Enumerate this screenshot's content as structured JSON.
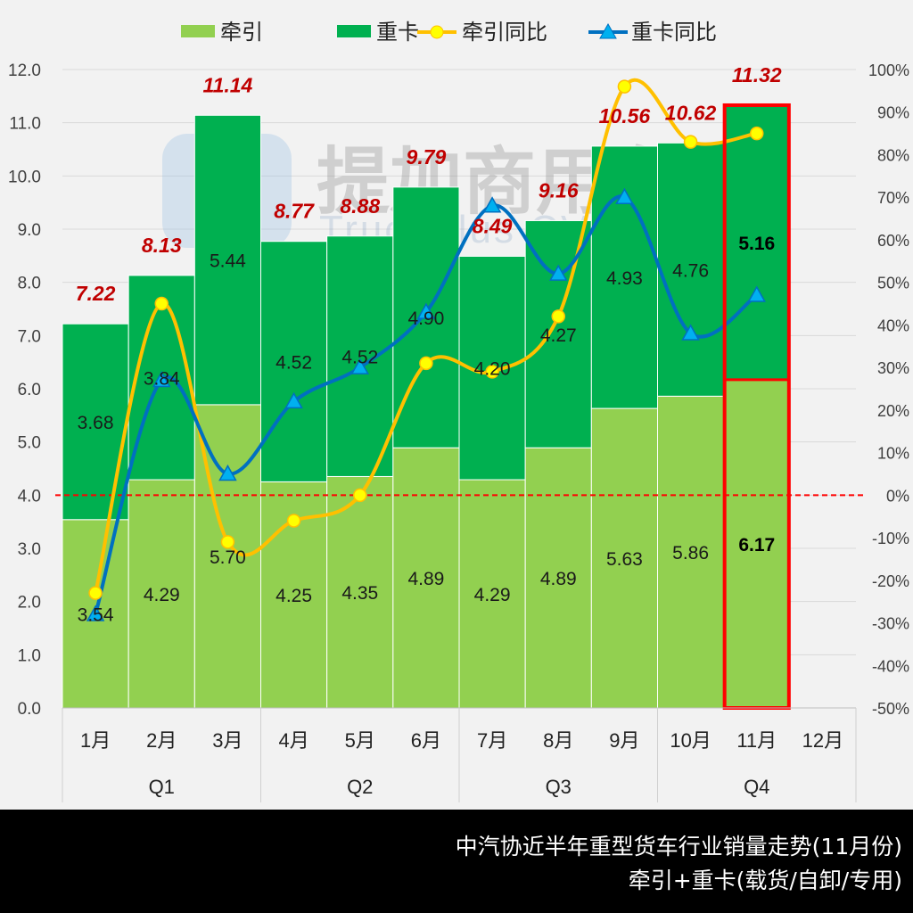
{
  "caption": {
    "line1": "中汽协近半年重型货车行业销量走势(11月份)",
    "line2": "牵引+重卡(载货/自卸/专用)"
  },
  "watermark": {
    "cn": "提加商用车",
    "en": "TruckPlus CV studio"
  },
  "colors": {
    "traction_bar": "#92d050",
    "heavy_bar": "#00b050",
    "traction_line": "#ffc000",
    "traction_marker": "#ffff00",
    "heavy_line": "#0070c0",
    "heavy_marker": "#00b0f0",
    "total_label": "#c00000",
    "highlight_box": "#ff0000",
    "zero_line": "#ff0000",
    "background": "#f2f2f2"
  },
  "chart_data": {
    "type": "bar",
    "stacked": true,
    "title": "中汽协近半年重型货车行业销量走势(11月份)",
    "subtitle": "牵引+重卡(载货/自卸/专用)",
    "categories": [
      "1月",
      "2月",
      "3月",
      "4月",
      "5月",
      "6月",
      "7月",
      "8月",
      "9月",
      "10月",
      "11月",
      "12月"
    ],
    "groups": [
      {
        "label": "Q1",
        "span": 3
      },
      {
        "label": "Q2",
        "span": 3
      },
      {
        "label": "Q3",
        "span": 3
      },
      {
        "label": "Q4",
        "span": 3
      }
    ],
    "series": [
      {
        "name": "牵引",
        "type": "bar",
        "axis": "left",
        "values": [
          3.54,
          4.29,
          5.7,
          4.25,
          4.35,
          4.89,
          4.29,
          4.89,
          5.63,
          5.86,
          6.17,
          null
        ]
      },
      {
        "name": "重卡",
        "type": "bar",
        "axis": "left",
        "values": [
          3.68,
          3.84,
          5.44,
          4.52,
          4.52,
          4.9,
          4.2,
          4.27,
          4.93,
          4.76,
          5.16,
          null
        ]
      },
      {
        "name": "牵引同比",
        "type": "line",
        "axis": "right",
        "marker": "circle",
        "values": [
          -23,
          45,
          -11,
          -6,
          0,
          31,
          29,
          42,
          96,
          83,
          85,
          null
        ]
      },
      {
        "name": "重卡同比",
        "type": "line",
        "axis": "right",
        "marker": "triangle",
        "values": [
          -28,
          27,
          5,
          22,
          30,
          43,
          68,
          52,
          70,
          38,
          47,
          null
        ]
      }
    ],
    "totals": [
      7.22,
      8.13,
      11.14,
      8.77,
      8.88,
      9.79,
      8.49,
      9.16,
      10.56,
      10.62,
      11.32,
      null
    ],
    "total_labels": [
      "7.22",
      "8.13",
      "11.14",
      "8.77",
      "8.88",
      "9.79",
      "8.49",
      "9.16",
      "10.56",
      "10.62",
      "11.32",
      ""
    ],
    "bottom_labels": [
      "3.54",
      "4.29",
      "5.70",
      "4.25",
      "4.35",
      "4.89",
      "4.29",
      "4.89",
      "5.63",
      "5.86",
      "6.17",
      ""
    ],
    "top_labels": [
      "3.68",
      "3.84",
      "5.44",
      "4.52",
      "4.52",
      "4.90",
      "4.20",
      "4.27",
      "4.93",
      "4.76",
      "5.16",
      ""
    ],
    "highlight_index": 10,
    "ylim": [
      0,
      12
    ],
    "y2lim": [
      -50,
      100
    ],
    "yticks": [
      "0.0",
      "1.0",
      "2.0",
      "3.0",
      "4.0",
      "5.0",
      "6.0",
      "7.0",
      "8.0",
      "9.0",
      "10.0",
      "11.0",
      "12.0"
    ],
    "y2ticks": [
      "-50%",
      "-40%",
      "-30%",
      "-20%",
      "-10%",
      "0%",
      "10%",
      "20%",
      "30%",
      "40%",
      "50%",
      "60%",
      "70%",
      "80%",
      "90%",
      "100%"
    ],
    "reference_line": {
      "axis": "right",
      "value": 0,
      "style": "dashed",
      "color": "#ff0000"
    },
    "xlabel": "",
    "ylabel": "",
    "y2label": "",
    "grid": true,
    "legend_position": "top",
    "legend": [
      "牵引",
      "重卡",
      "牵引同比",
      "重卡同比"
    ]
  }
}
